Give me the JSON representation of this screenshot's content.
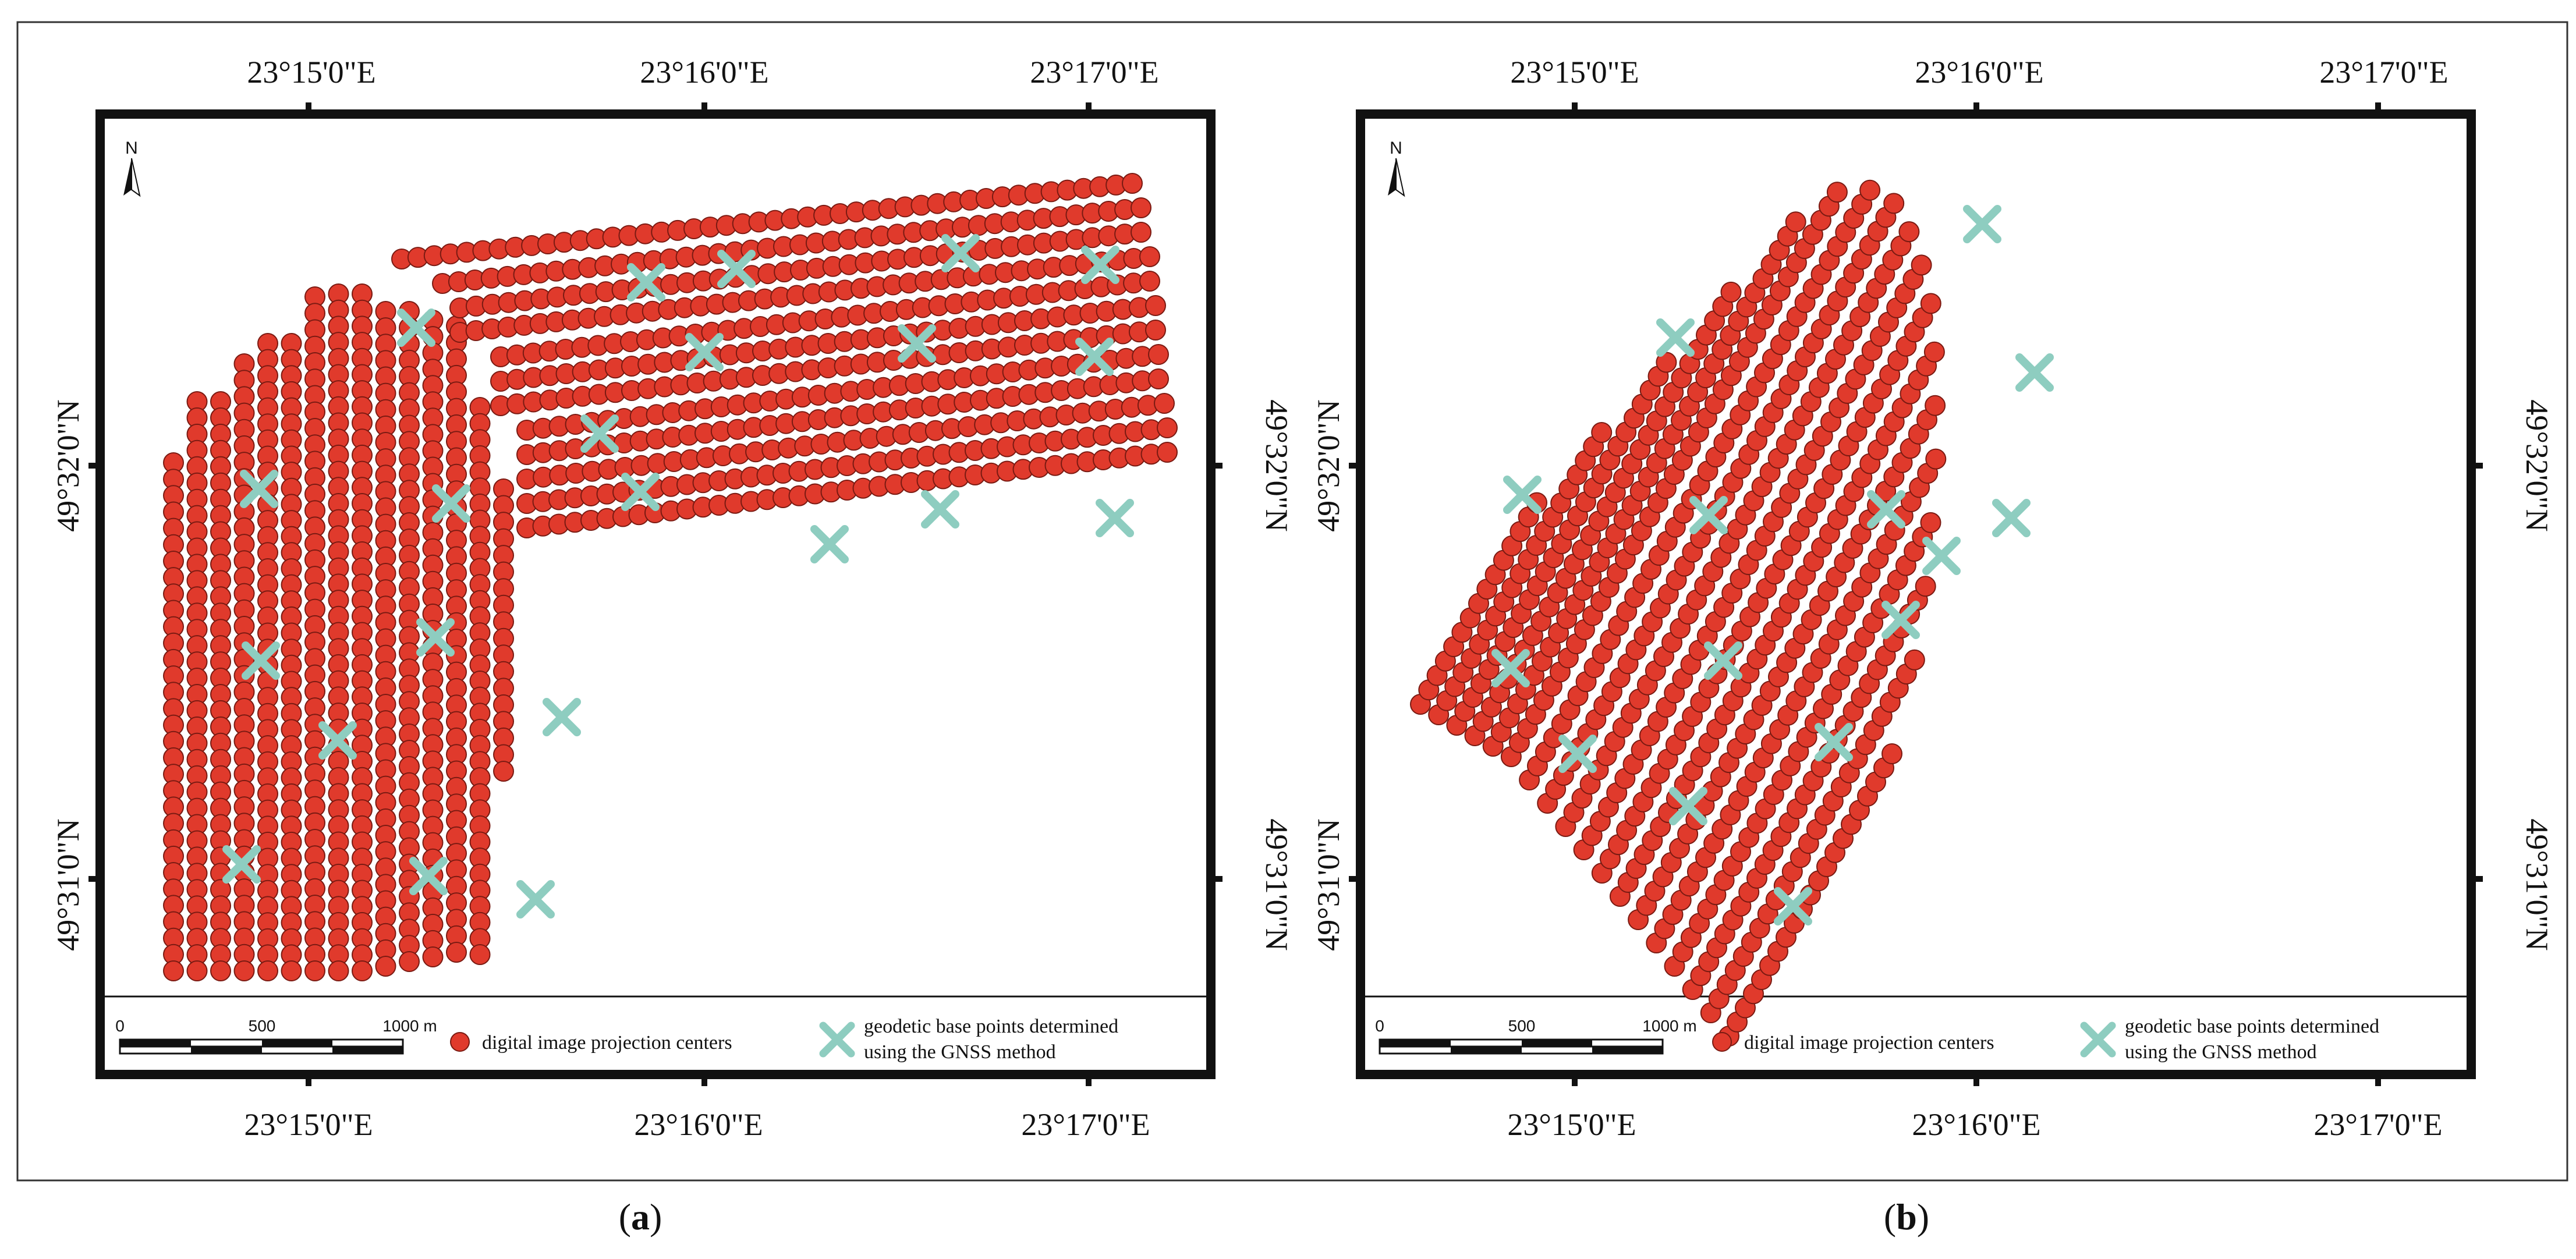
{
  "figure": {
    "panels": [
      {
        "id": "a",
        "caption_letter": "a",
        "top_lon_labels": [
          "23°15'0\"E",
          "23°16'0\"E",
          "23°17'0\"E"
        ],
        "bottom_lon_labels": [
          "23°15'0\"E",
          "23°16'0\"E",
          "23°17'0\"E"
        ],
        "lat_labels": [
          "49°32'0\"N",
          "49°31'0\"N"
        ],
        "north_label": "N",
        "scale_labels": [
          "0",
          "500",
          "1000 m"
        ]
      },
      {
        "id": "b",
        "caption_letter": "b",
        "top_lon_labels": [
          "23°15'0\"E",
          "23°16'0\"E",
          "23°17'0\"E"
        ],
        "bottom_lon_labels": [
          "23°15'0\"E",
          "23°16'0\"E",
          "23°17'0\"E"
        ],
        "lat_labels": [
          "49°32'0\"N",
          "49°31'0\"N"
        ],
        "north_label": "N",
        "scale_labels": [
          "0",
          "500",
          "1000 m"
        ]
      }
    ],
    "legend": {
      "projection_centers": "digital image projection centers",
      "base_points_line1": "geodetic base points determined",
      "base_points_line2": "using the GNSS method"
    },
    "colors": {
      "projection_center_fill": "#e03a2c",
      "projection_center_stroke": "#7a1a12",
      "base_point": "#8ecdc0",
      "frame": "#111111"
    },
    "icons": {
      "projection_center": "red-dot-icon",
      "base_point": "teal-cross-icon",
      "north_arrow": "north-arrow-icon"
    }
  }
}
